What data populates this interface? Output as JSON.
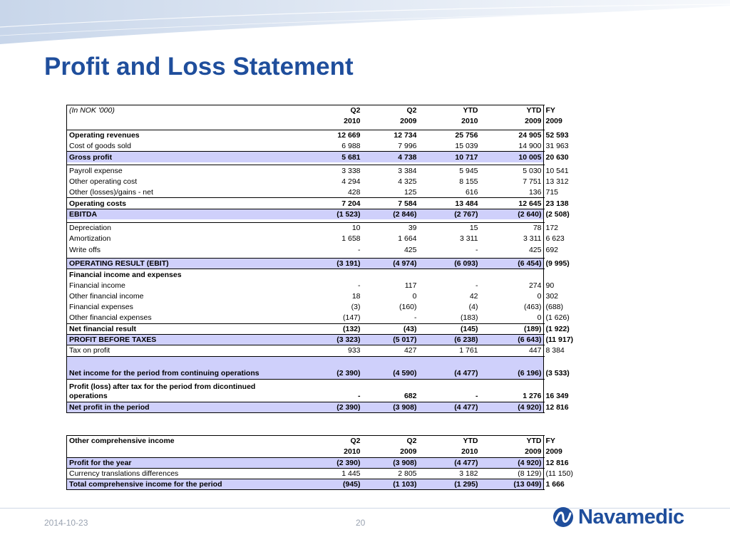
{
  "slide": {
    "title": "Profit and Loss Statement",
    "footer_date": "2014-10-23",
    "page_number": "20",
    "logo_text": "Navamedic",
    "accent_color": "#1f4e9c",
    "highlight_color": "#cfd0fb"
  },
  "pl_table": {
    "header_label": "(In NOK '000)",
    "periods": [
      "Q2",
      "Q2",
      "YTD",
      "YTD",
      "FY"
    ],
    "years": [
      "2010",
      "2009",
      "2010",
      "2009",
      "2009"
    ],
    "rows": [
      {
        "label": "Operating revenues",
        "values": [
          "12 669",
          "12 734",
          "25 756",
          "24 905",
          "52 593"
        ]
      },
      {
        "label": "Cost of goods sold",
        "values": [
          "6 988",
          "7 996",
          "15 039",
          "14 900",
          "31 963"
        ]
      },
      {
        "label": "Gross profit",
        "values": [
          "5 681",
          "4 738",
          "10 717",
          "10 005",
          "20 630"
        ]
      },
      {
        "label": "Payroll expense",
        "values": [
          "3 338",
          "3 384",
          "5 945",
          "5 030",
          "10 541"
        ]
      },
      {
        "label": "Other operating cost",
        "values": [
          "4 294",
          "4 325",
          "8 155",
          "7 751",
          "13 312"
        ]
      },
      {
        "label": "Other (losses)/gains - net",
        "values": [
          "428",
          "125",
          "616",
          "136",
          "715"
        ]
      },
      {
        "label": "Operating costs",
        "values": [
          "7 204",
          "7 584",
          "13 484",
          "12 645",
          "23 138"
        ]
      },
      {
        "label": "EBITDA",
        "values": [
          "(1 523)",
          "(2 846)",
          "(2 767)",
          "(2 640)",
          "(2 508)"
        ]
      },
      {
        "label": "Depreciation",
        "values": [
          "10",
          "39",
          "15",
          "78",
          "172"
        ]
      },
      {
        "label": "Amortization",
        "values": [
          "1 658",
          "1 664",
          "3 311",
          "3 311",
          "6 623"
        ]
      },
      {
        "label": "Write offs",
        "values": [
          "-",
          "425",
          "-",
          "425",
          "692"
        ]
      },
      {
        "label": "OPERATING RESULT (EBIT)",
        "values": [
          "(3 191)",
          "(4 974)",
          "(6 093)",
          "(6 454)",
          "(9 995)"
        ]
      },
      {
        "label": "Financial income and expenses",
        "values": [
          "",
          "",
          "",
          "",
          ""
        ]
      },
      {
        "label": "Financial income",
        "values": [
          "-",
          "117",
          "-",
          "274",
          "90"
        ]
      },
      {
        "label": "Other financial income",
        "values": [
          "18",
          "0",
          "42",
          "0",
          "302"
        ]
      },
      {
        "label": "Financial expenses",
        "values": [
          "(3)",
          "(160)",
          "(4)",
          "(463)",
          "(688)"
        ]
      },
      {
        "label": "Other financial expenses",
        "values": [
          "(147)",
          "-",
          "(183)",
          "0",
          "(1 626)"
        ]
      },
      {
        "label": "Net financial result",
        "values": [
          "(132)",
          "(43)",
          "(145)",
          "(189)",
          "(1 922)"
        ]
      },
      {
        "label": "PROFIT BEFORE TAXES",
        "values": [
          "(3 323)",
          "(5 017)",
          "(6 238)",
          "(6 643)",
          "(11 917)"
        ]
      },
      {
        "label": "Tax on profit",
        "values": [
          "933",
          "427",
          "1 761",
          "447",
          "8 384"
        ]
      },
      {
        "label": "Net income for the period from continuing operations",
        "values": [
          "(2 390)",
          "(4 590)",
          "(4 477)",
          "(6 196)",
          "(3 533)"
        ]
      },
      {
        "label": "Profit (loss) after tax for the period from dicontinued operations",
        "values": [
          "-",
          "682",
          "-",
          "1 276",
          "16 349"
        ]
      },
      {
        "label": "Net profit in the period",
        "values": [
          "(2 390)",
          "(3 908)",
          "(4 477)",
          "(4 920)",
          "12 816"
        ]
      }
    ]
  },
  "oci_table": {
    "header_label": "Other comprehensive income",
    "periods": [
      "Q2",
      "Q2",
      "YTD",
      "YTD",
      "FY"
    ],
    "years": [
      "2010",
      "2009",
      "2010",
      "2009",
      "2009"
    ],
    "rows": [
      {
        "label": "Profit for the year",
        "values": [
          "(2 390)",
          "(3 908)",
          "(4 477)",
          "(4 920)",
          "12 816"
        ]
      },
      {
        "label": "Currency translations differences",
        "values": [
          "1 445",
          "2 805",
          "3 182",
          "(8 129)",
          "(11 150)"
        ]
      },
      {
        "label": "Total comprehensive income for the period",
        "values": [
          "(945)",
          "(1 103)",
          "(1 295)",
          "(13 049)",
          "1 666"
        ]
      }
    ]
  }
}
